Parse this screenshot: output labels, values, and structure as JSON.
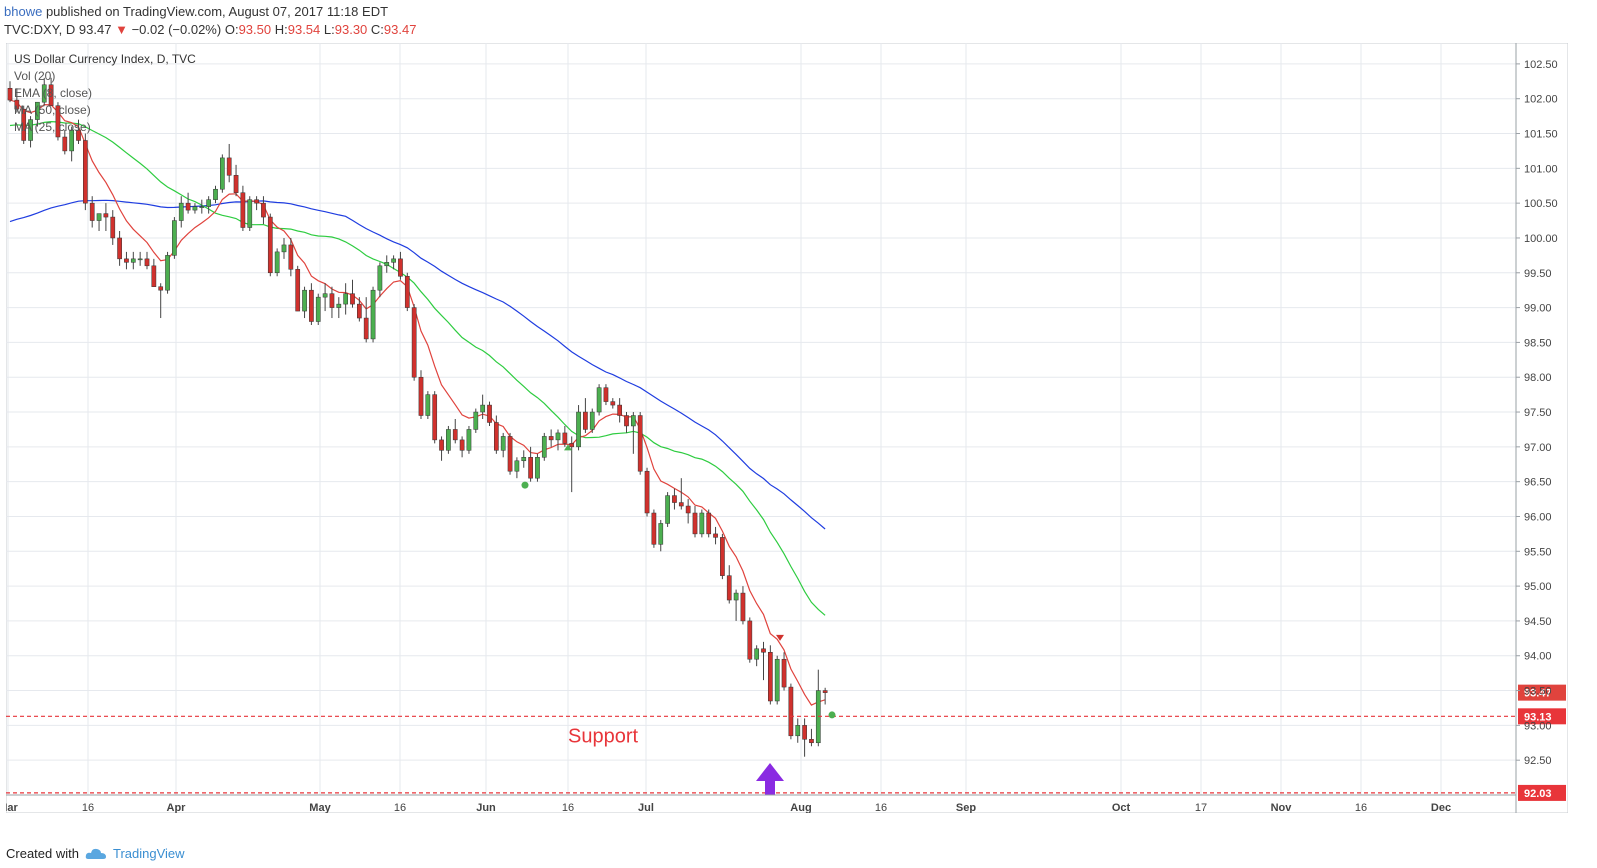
{
  "header": {
    "author": "bhowe",
    "published_text": "published on TradingView.com, August 07, 2017 11:18 EDT",
    "symbol": "TVC:DXY, D",
    "last": "93.47",
    "change_arrow": "▼",
    "change": "−0.02 (−0.02%)",
    "o_label": "O:",
    "o_val": "93.50",
    "h_label": "H:",
    "h_val": "93.54",
    "l_label": "L:",
    "l_val": "93.30",
    "c_label": "C:",
    "c_val": "93.47"
  },
  "legend": {
    "title": "US Dollar Currency Index, D, TVC",
    "vol": "Vol (20)",
    "ema": "EMA (8, close)",
    "ma1": "MA (50, close)",
    "ma2": "MA (25, close)"
  },
  "colors": {
    "up": "#4caf50",
    "down": "#d0312d",
    "ema": "#e0433d",
    "ma25": "#2ecc40",
    "ma50": "#1f3de0",
    "support": "#e8353a",
    "arrow": "#8a2be2",
    "grid": "#e6e9ee"
  },
  "annotation": {
    "support_label": "Support"
  },
  "price_labels": {
    "last": "93.47",
    "support": "93.13",
    "bottom": "92.03"
  },
  "footer": {
    "created_with": "Created with",
    "brand": "TradingView"
  },
  "chart_data": {
    "type": "candlestick",
    "title": "US Dollar Currency Index, D, TVC",
    "x_ticks": [
      "Mar",
      "16",
      "Apr",
      "May",
      "16",
      "Jun",
      "16",
      "Jul",
      "Aug",
      "16",
      "Sep",
      "Oct",
      "17",
      "Nov",
      "16",
      "Dec"
    ],
    "y_ticks": [
      92.5,
      93.0,
      93.5,
      94.0,
      94.5,
      95.0,
      95.5,
      96.0,
      96.5,
      97.0,
      97.5,
      98.0,
      98.5,
      99.0,
      99.5,
      100.0,
      100.5,
      101.0,
      101.5,
      102.0,
      102.5
    ],
    "ylim": [
      92.0,
      102.8
    ],
    "grid": true,
    "support_levels": [
      93.13,
      92.03
    ],
    "candles": [
      [
        102.15,
        102.25,
        101.95,
        101.98
      ],
      [
        101.98,
        102.15,
        101.8,
        101.85
      ],
      [
        101.85,
        101.9,
        101.35,
        101.4
      ],
      [
        101.4,
        101.75,
        101.3,
        101.7
      ],
      [
        101.7,
        101.95,
        101.6,
        101.95
      ],
      [
        101.95,
        102.3,
        101.9,
        102.2
      ],
      [
        102.2,
        102.3,
        101.9,
        101.9
      ],
      [
        101.9,
        101.95,
        101.4,
        101.45
      ],
      [
        101.45,
        101.55,
        101.2,
        101.25
      ],
      [
        101.25,
        101.6,
        101.1,
        101.55
      ],
      [
        101.55,
        101.7,
        101.35,
        101.4
      ],
      [
        101.4,
        101.5,
        100.4,
        100.5
      ],
      [
        100.5,
        100.6,
        100.15,
        100.25
      ],
      [
        100.25,
        100.35,
        100.1,
        100.35
      ],
      [
        100.35,
        100.5,
        100.1,
        100.3
      ],
      [
        100.3,
        100.4,
        99.9,
        100.0
      ],
      [
        100.0,
        100.1,
        99.6,
        99.7
      ],
      [
        99.7,
        99.8,
        99.55,
        99.65
      ],
      [
        99.65,
        99.8,
        99.55,
        99.7
      ],
      [
        99.7,
        99.8,
        99.6,
        99.7
      ],
      [
        99.7,
        99.8,
        99.55,
        99.6
      ],
      [
        99.6,
        99.7,
        99.3,
        99.3
      ],
      [
        99.3,
        99.35,
        98.85,
        99.25
      ],
      [
        99.25,
        99.8,
        99.2,
        99.75
      ],
      [
        99.75,
        100.3,
        99.7,
        100.25
      ],
      [
        100.25,
        100.6,
        100.15,
        100.5
      ],
      [
        100.5,
        100.65,
        100.35,
        100.4
      ],
      [
        100.4,
        100.5,
        100.35,
        100.45
      ],
      [
        100.45,
        100.55,
        100.35,
        100.45
      ],
      [
        100.45,
        100.6,
        100.35,
        100.55
      ],
      [
        100.55,
        100.75,
        100.5,
        100.7
      ],
      [
        100.7,
        101.2,
        100.65,
        101.15
      ],
      [
        101.15,
        101.35,
        100.8,
        100.9
      ],
      [
        100.9,
        101.05,
        100.6,
        100.65
      ],
      [
        100.65,
        100.75,
        100.1,
        100.15
      ],
      [
        100.15,
        100.6,
        100.1,
        100.55
      ],
      [
        100.55,
        100.6,
        100.4,
        100.5
      ],
      [
        100.5,
        100.6,
        100.2,
        100.3
      ],
      [
        100.3,
        100.35,
        99.45,
        99.5
      ],
      [
        99.5,
        99.85,
        99.45,
        99.8
      ],
      [
        99.8,
        100.0,
        99.7,
        99.9
      ],
      [
        99.9,
        100.0,
        99.45,
        99.55
      ],
      [
        99.55,
        99.6,
        98.95,
        98.95
      ],
      [
        98.95,
        99.3,
        98.85,
        99.25
      ],
      [
        99.25,
        99.35,
        98.75,
        98.8
      ],
      [
        98.8,
        99.2,
        98.75,
        99.15
      ],
      [
        99.15,
        99.35,
        98.95,
        99.2
      ],
      [
        99.2,
        99.3,
        98.85,
        99.0
      ],
      [
        99.0,
        99.15,
        98.85,
        99.05
      ],
      [
        99.05,
        99.35,
        98.9,
        99.2
      ],
      [
        99.2,
        99.4,
        99.0,
        99.05
      ],
      [
        99.05,
        99.15,
        98.8,
        98.85
      ],
      [
        98.85,
        99.15,
        98.5,
        98.55
      ],
      [
        98.55,
        99.3,
        98.5,
        99.25
      ],
      [
        99.25,
        99.65,
        99.15,
        99.6
      ],
      [
        99.6,
        99.75,
        99.5,
        99.65
      ],
      [
        99.65,
        99.75,
        99.55,
        99.7
      ],
      [
        99.7,
        99.8,
        99.4,
        99.45
      ],
      [
        99.45,
        99.5,
        98.95,
        99.0
      ],
      [
        99.0,
        99.05,
        97.95,
        98.0
      ],
      [
        98.0,
        98.1,
        97.4,
        97.45
      ],
      [
        97.45,
        97.8,
        97.4,
        97.75
      ],
      [
        97.75,
        97.8,
        97.05,
        97.1
      ],
      [
        97.1,
        97.15,
        96.8,
        96.95
      ],
      [
        96.95,
        97.3,
        96.9,
        97.25
      ],
      [
        97.25,
        97.4,
        97.05,
        97.1
      ],
      [
        97.1,
        97.15,
        96.85,
        96.95
      ],
      [
        96.95,
        97.3,
        96.9,
        97.25
      ],
      [
        97.25,
        97.55,
        97.2,
        97.5
      ],
      [
        97.5,
        97.75,
        97.4,
        97.6
      ],
      [
        97.6,
        97.65,
        97.3,
        97.35
      ],
      [
        97.35,
        97.45,
        96.9,
        96.95
      ],
      [
        96.95,
        97.2,
        96.85,
        97.15
      ],
      [
        97.15,
        97.2,
        96.6,
        96.65
      ],
      [
        96.65,
        96.85,
        96.55,
        96.8
      ],
      [
        96.8,
        96.95,
        96.7,
        96.85
      ],
      [
        96.85,
        97.0,
        96.5,
        96.55
      ],
      [
        96.55,
        96.9,
        96.5,
        96.85
      ],
      [
        96.85,
        97.2,
        96.8,
        97.15
      ],
      [
        97.15,
        97.25,
        97.0,
        97.1
      ],
      [
        97.1,
        97.25,
        96.95,
        97.2
      ],
      [
        97.2,
        97.3,
        97.0,
        97.05
      ],
      [
        97.05,
        97.15,
        96.35,
        97.0
      ],
      [
        97.0,
        97.6,
        96.95,
        97.5
      ],
      [
        97.5,
        97.7,
        97.2,
        97.25
      ],
      [
        97.25,
        97.55,
        97.2,
        97.5
      ],
      [
        97.5,
        97.9,
        97.45,
        97.85
      ],
      [
        97.85,
        97.9,
        97.6,
        97.65
      ],
      [
        97.65,
        97.7,
        97.55,
        97.6
      ],
      [
        97.6,
        97.7,
        97.35,
        97.45
      ],
      [
        97.45,
        97.5,
        97.2,
        97.3
      ],
      [
        97.3,
        97.5,
        96.9,
        97.45
      ],
      [
        97.45,
        97.5,
        96.6,
        96.65
      ],
      [
        96.65,
        96.7,
        96.0,
        96.05
      ],
      [
        96.05,
        96.1,
        95.55,
        95.6
      ],
      [
        95.6,
        95.95,
        95.5,
        95.9
      ],
      [
        95.9,
        96.35,
        95.85,
        96.3
      ],
      [
        96.3,
        96.4,
        96.1,
        96.2
      ],
      [
        96.2,
        96.55,
        96.1,
        96.15
      ],
      [
        96.15,
        96.25,
        95.9,
        96.05
      ],
      [
        96.05,
        96.15,
        95.7,
        95.75
      ],
      [
        95.75,
        96.1,
        95.7,
        96.05
      ],
      [
        96.05,
        96.1,
        95.7,
        95.75
      ],
      [
        95.75,
        95.85,
        95.6,
        95.7
      ],
      [
        95.7,
        95.75,
        95.1,
        95.15
      ],
      [
        95.15,
        95.3,
        94.75,
        94.8
      ],
      [
        94.8,
        94.95,
        94.5,
        94.9
      ],
      [
        94.9,
        95.0,
        94.45,
        94.5
      ],
      [
        94.5,
        94.55,
        93.9,
        93.95
      ],
      [
        93.95,
        94.15,
        93.85,
        94.1
      ],
      [
        94.1,
        94.2,
        93.65,
        94.05
      ],
      [
        94.05,
        94.15,
        93.3,
        93.35
      ],
      [
        93.35,
        94.0,
        93.3,
        93.95
      ],
      [
        93.95,
        94.05,
        93.5,
        93.55
      ],
      [
        93.55,
        93.6,
        92.8,
        92.85
      ],
      [
        92.85,
        93.1,
        92.75,
        93.0
      ],
      [
        93.0,
        93.1,
        92.55,
        92.8
      ],
      [
        92.8,
        92.95,
        92.7,
        92.75
      ],
      [
        92.75,
        93.8,
        92.7,
        93.5
      ],
      [
        93.5,
        93.54,
        93.3,
        93.47
      ]
    ]
  }
}
